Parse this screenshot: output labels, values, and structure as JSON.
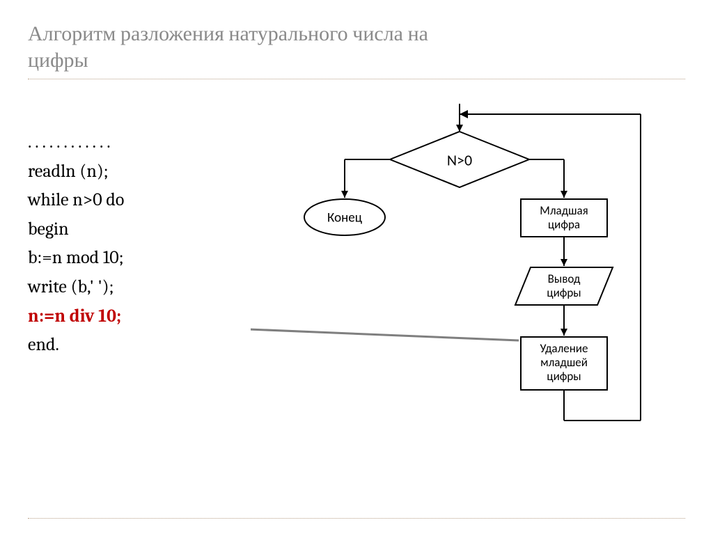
{
  "title": "Алгоритм разложения натурального числа на\nцифры",
  "code": {
    "dots": ". . . . . . . . . . . .",
    "l1": "readln (n);",
    "l2": "while n>0 do",
    "l3": "begin",
    "l4": "b:=n mod 10;",
    "l5": "write (b,' ');",
    "l6": "n:=n div 10;",
    "l7": "end."
  },
  "flow": {
    "decision": "N>0",
    "end": "Конец",
    "box1_l1": "Младшая",
    "box1_l2": "цифра",
    "box2_l1": "Вывод",
    "box2_l2": "цифры",
    "box3_l1": "Удаление",
    "box3_l2": "младшей",
    "box3_l3": "цифры"
  },
  "style": {
    "stroke": "#000000",
    "stroke_width": 2,
    "arrow_gray": "#7f7f7f",
    "highlight_color": "#c00000",
    "title_color": "#8a8a8a",
    "font_code": 26,
    "font_node": 18
  }
}
